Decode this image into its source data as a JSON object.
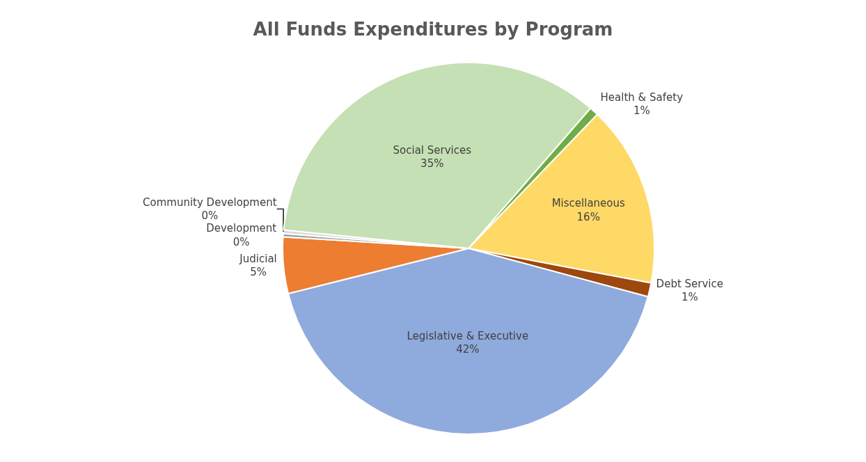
{
  "chart_data": {
    "type": "pie",
    "title": "All Funds Expenditures by Program",
    "categories": [
      "Health & Safety",
      "Miscellaneous",
      "Debt Service",
      "Legislative & Executive",
      "Judicial",
      "Development",
      "Community Development",
      "Social Services"
    ],
    "values": [
      0.8,
      15.8,
      1.2,
      41.9,
      4.9,
      0.3,
      0.3,
      34.8
    ],
    "value_labels": [
      "1%",
      "16%",
      "1%",
      "42%",
      "5%",
      "0%",
      "0%",
      "35%"
    ],
    "colors": [
      "#70ad47",
      "#ffd966",
      "#9e480e",
      "#8faadc",
      "#ed7d31",
      "#a5a5a5",
      "#d9d9d9",
      "#c5e0b4"
    ],
    "legend": false
  }
}
